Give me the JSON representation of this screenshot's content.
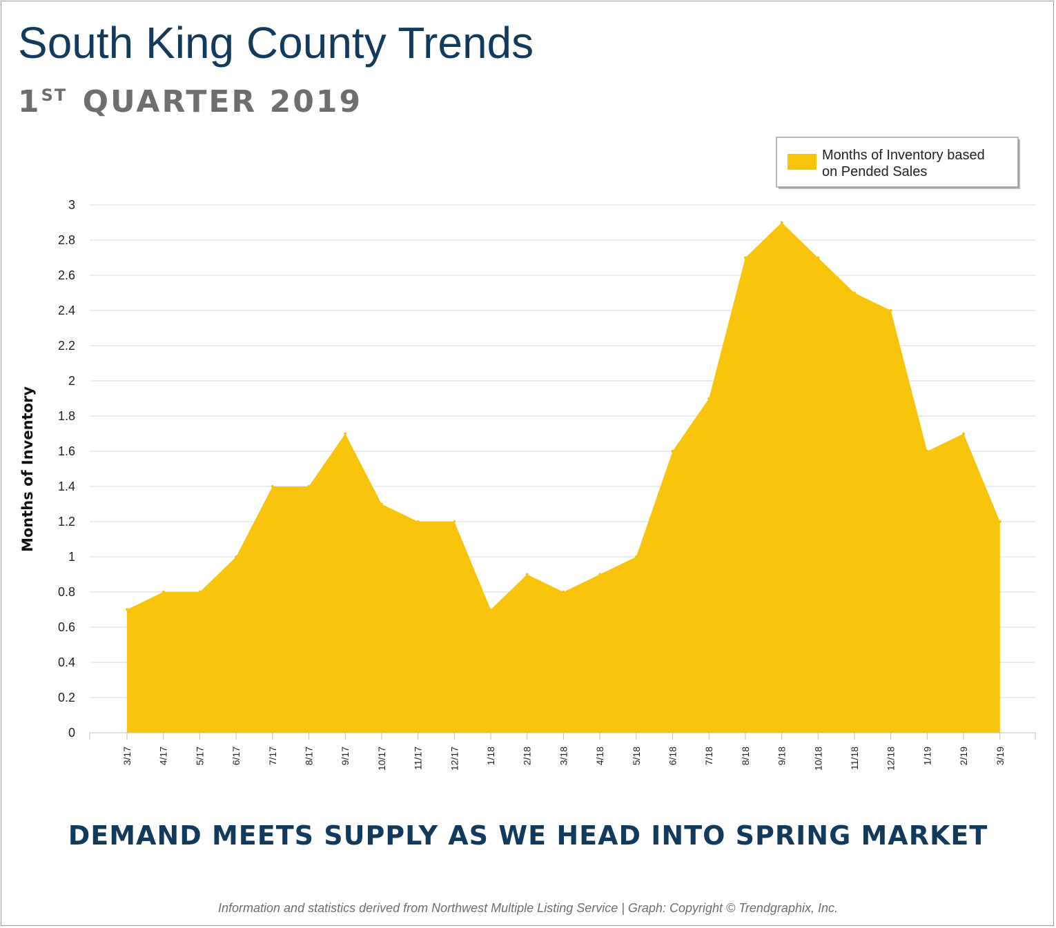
{
  "header": {
    "title": "South King County Trends",
    "subtitle_ordinal": "1",
    "subtitle_suffix": "ST",
    "subtitle_rest": "QUARTER 2019"
  },
  "headline": "DEMAND MEETS SUPPLY AS WE HEAD INTO SPRING MARKET",
  "footer": "Information and statistics derived from Northwest Multiple Listing Service  |  Graph: Copyright © Trendgraphix, Inc.",
  "colors": {
    "area": "#f7c40b",
    "title": "#123a5c",
    "subtitle": "#6d6e70",
    "grid": "#d9d9d9"
  },
  "chart_data": {
    "type": "area",
    "ylabel": "Months of Inventory",
    "ylim": [
      0,
      3
    ],
    "yticks": [
      "0",
      "0.2",
      "0.4",
      "0.6",
      "0.8",
      "1",
      "1.2",
      "1.4",
      "1.6",
      "1.8",
      "2",
      "2.2",
      "2.4",
      "2.6",
      "2.8",
      "3"
    ],
    "grid": true,
    "legend_position": "top-right",
    "categories": [
      "3/17",
      "4/17",
      "5/17",
      "6/17",
      "7/17",
      "8/17",
      "9/17",
      "10/17",
      "11/17",
      "12/17",
      "1/18",
      "2/18",
      "3/18",
      "4/18",
      "5/18",
      "6/18",
      "7/18",
      "8/18",
      "9/18",
      "10/18",
      "11/18",
      "12/18",
      "1/19",
      "2/19",
      "3/19"
    ],
    "series": [
      {
        "name": "Months of Inventory based on Pended Sales",
        "legend_lines": [
          "Months of Inventory based",
          "on Pended Sales"
        ],
        "values": [
          0.7,
          0.8,
          0.8,
          1.0,
          1.4,
          1.4,
          1.7,
          1.3,
          1.2,
          1.2,
          0.7,
          0.9,
          0.8,
          0.9,
          1.0,
          1.6,
          1.9,
          2.7,
          2.9,
          2.7,
          2.5,
          2.4,
          1.6,
          1.7,
          1.2
        ]
      }
    ]
  }
}
